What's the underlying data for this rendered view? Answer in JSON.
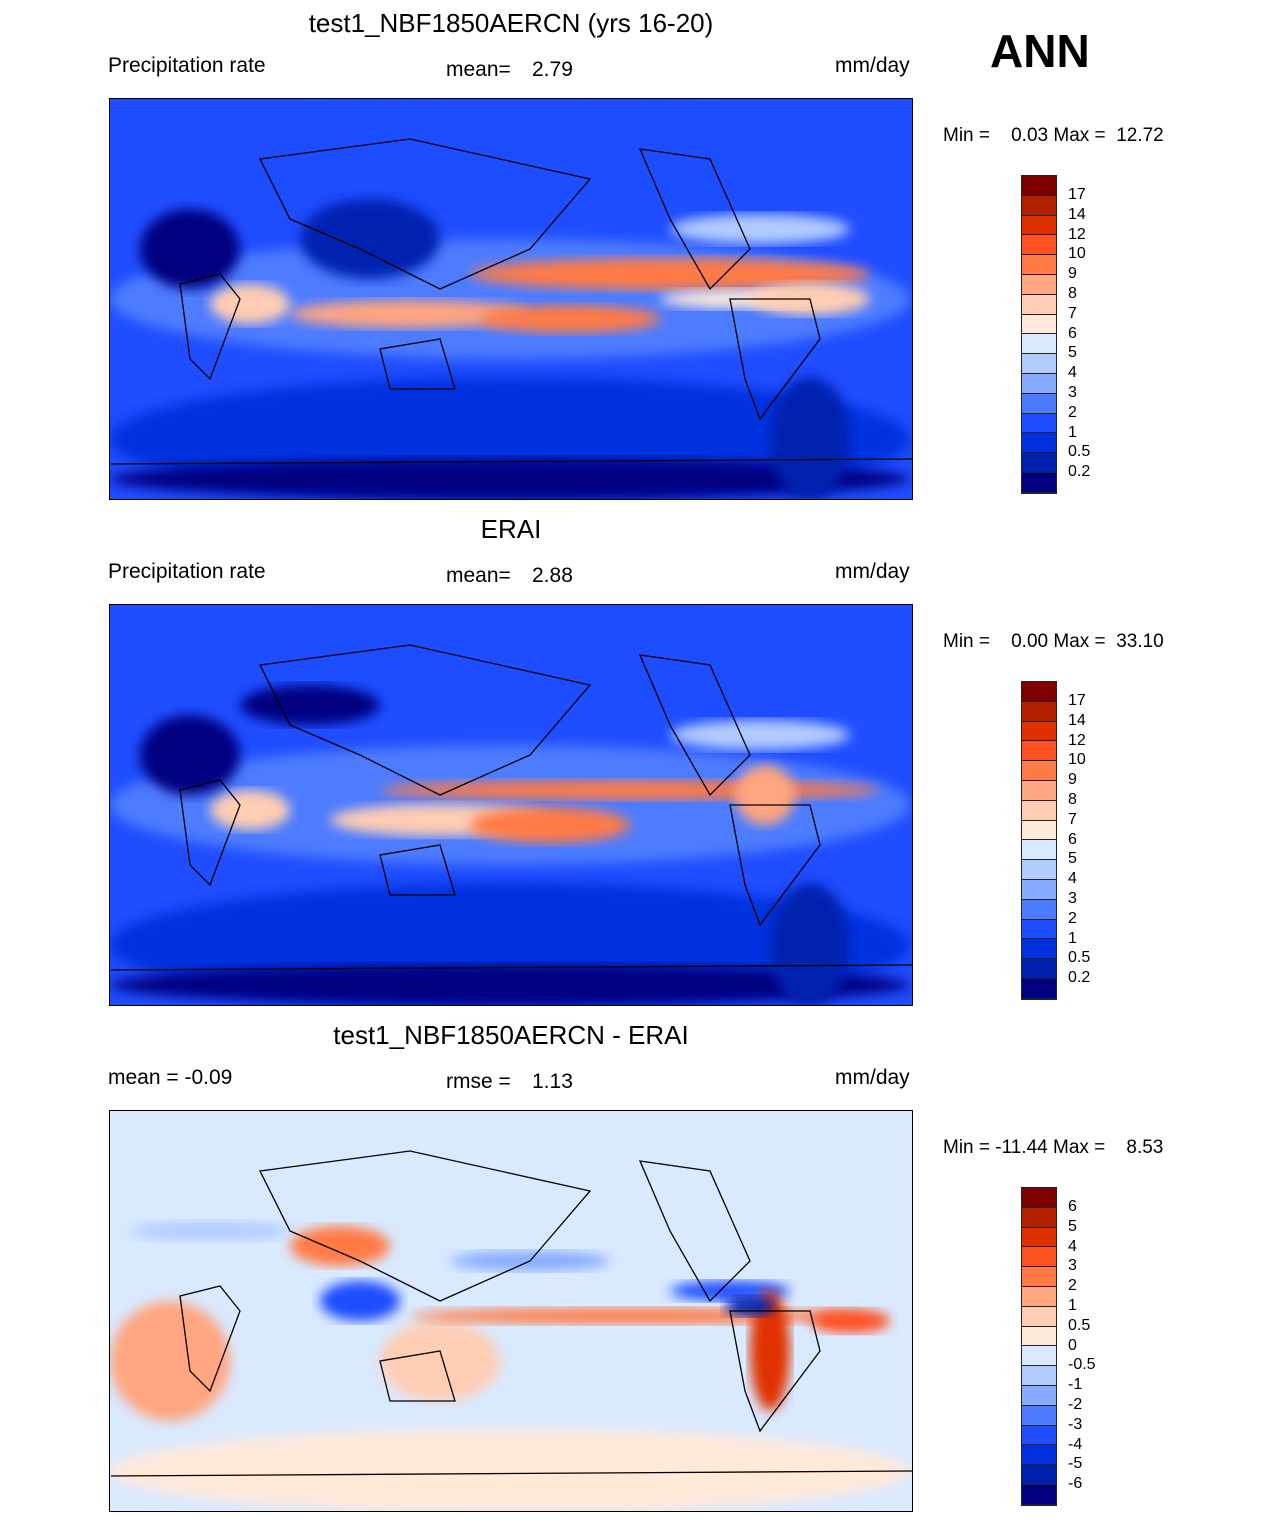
{
  "season": "ANN",
  "units": "mm/day",
  "palette": [
    "#800000",
    "#b32000",
    "#e03000",
    "#ff5020",
    "#ff7a45",
    "#ffa57f",
    "#ffcdb3",
    "#ffe9d9",
    "#d9e9ff",
    "#b3ccff",
    "#85aaff",
    "#4d7bff",
    "#1f4dff",
    "#0030e0",
    "#0020b0",
    "#000080"
  ],
  "panels": [
    {
      "title": "test1_NBF1850AERCN (yrs 16-20)",
      "left": "Precipitation rate",
      "center_label": "mean=",
      "center_value": "2.79",
      "right": "mm/day",
      "minmax": "Min =    0.03 Max =  12.72",
      "levels": [
        "17",
        "14",
        "12",
        "10",
        "9",
        "8",
        "7",
        "6",
        "5",
        "4",
        "3",
        "2",
        "1",
        "0.5",
        "0.2"
      ]
    },
    {
      "title": "ERAI",
      "left": "Precipitation rate",
      "center_label": "mean=",
      "center_value": "2.88",
      "right": "mm/day",
      "minmax": "Min =    0.00 Max =  33.10",
      "levels": [
        "17",
        "14",
        "12",
        "10",
        "9",
        "8",
        "7",
        "6",
        "5",
        "4",
        "3",
        "2",
        "1",
        "0.5",
        "0.2"
      ]
    },
    {
      "title": "test1_NBF1850AERCN - ERAI",
      "left": "mean =  -0.09",
      "center_label": "rmse =",
      "center_value": "1.13",
      "right": "mm/day",
      "minmax": "Min = -11.44 Max =    8.53",
      "levels": [
        "6",
        "5",
        "4",
        "3",
        "2",
        "1",
        "0.5",
        "0",
        "-0.5",
        "-1",
        "-2",
        "-3",
        "-4",
        "-5",
        "-6"
      ]
    }
  ]
}
